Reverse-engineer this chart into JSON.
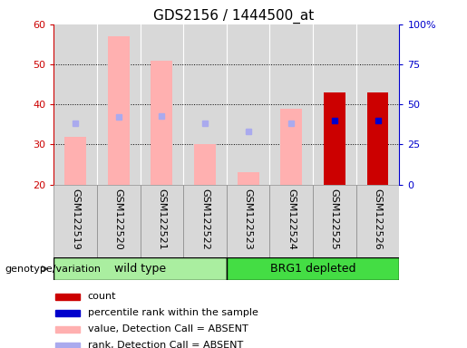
{
  "title": "GDS2156 / 1444500_at",
  "samples": [
    "GSM122519",
    "GSM122520",
    "GSM122521",
    "GSM122522",
    "GSM122523",
    "GSM122524",
    "GSM122525",
    "GSM122526"
  ],
  "ylim_left": [
    20,
    60
  ],
  "ylim_right": [
    0,
    100
  ],
  "yticks_left": [
    20,
    30,
    40,
    50,
    60
  ],
  "yticks_right": [
    0,
    25,
    50,
    75,
    100
  ],
  "ytick_labels_right": [
    "0",
    "25",
    "50",
    "75",
    "100%"
  ],
  "count_values": [
    null,
    null,
    null,
    null,
    null,
    null,
    43,
    43
  ],
  "count_color": "#cc0000",
  "rank_present_values": [
    null,
    null,
    null,
    null,
    null,
    null,
    40,
    40
  ],
  "rank_present_color": "#0000cc",
  "absent_value_values": [
    32,
    57,
    51,
    30,
    23,
    39,
    null,
    null
  ],
  "absent_value_color": "#ffb0b0",
  "absent_rank_values": [
    38,
    42,
    42.5,
    38,
    33,
    38,
    null,
    null
  ],
  "absent_rank_color": "#aaaaee",
  "bar_bottom": 20,
  "bar_width": 0.5,
  "plot_bg_color": "#d8d8d8",
  "left_tick_color": "#cc0000",
  "right_tick_color": "#0000cc",
  "grid_linestyle": "dotted",
  "group_wt_color": "#aaeea0",
  "group_brg1_color": "#44dd44",
  "group_border_color": "#000000",
  "wt_label": "wild type",
  "brg1_label": "BRG1 depleted",
  "genotype_label": "genotype/variation",
  "legend_items": [
    {
      "label": "count",
      "color": "#cc0000"
    },
    {
      "label": "percentile rank within the sample",
      "color": "#0000cc"
    },
    {
      "label": "value, Detection Call = ABSENT",
      "color": "#ffb0b0"
    },
    {
      "label": "rank, Detection Call = ABSENT",
      "color": "#aaaaee"
    }
  ],
  "title_fontsize": 11,
  "tick_fontsize": 8,
  "label_fontsize": 8,
  "legend_fontsize": 8
}
